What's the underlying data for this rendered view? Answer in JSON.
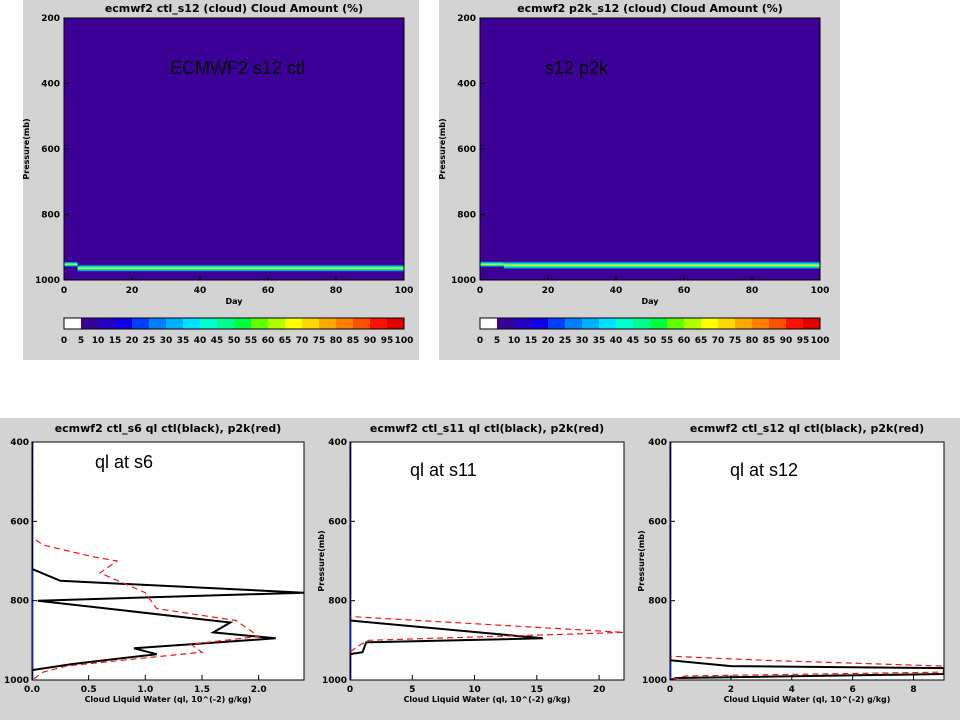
{
  "overlay_labels": {
    "top_left": "ECMWF2 s12 ctl",
    "top_right": "s12 p2k",
    "bottom_left": "ql at s6",
    "bottom_middle": "ql at s11",
    "bottom_right": "ql at s12"
  },
  "colorbar": {
    "labels": [
      "0",
      "5",
      "10",
      "15",
      "20",
      "25",
      "30",
      "35",
      "40",
      "45",
      "50",
      "55",
      "60",
      "65",
      "70",
      "75",
      "80",
      "85",
      "90",
      "95",
      "100"
    ],
    "colors": [
      "#ffffff",
      "#3c0096",
      "#2800c0",
      "#1000e8",
      "#0040ff",
      "#0080ff",
      "#00b0ff",
      "#00e0ff",
      "#00ffd0",
      "#00ff90",
      "#00ff40",
      "#60ff00",
      "#b0ff00",
      "#ffff00",
      "#ffd800",
      "#ffa800",
      "#ff8000",
      "#ff5000",
      "#ff1000",
      "#e00000"
    ]
  },
  "chart_data": [
    {
      "type": "heatmap",
      "title": "ecmwf2 ctl_s12  (cloud)  Cloud Amount (%)",
      "xlabel": "Day",
      "ylabel": "Pressure(mb)",
      "xlim": [
        0,
        100
      ],
      "ylim": [
        1000,
        200
      ],
      "xticks": [
        "0",
        "20",
        "40",
        "60",
        "80",
        "100"
      ],
      "yticks": [
        "200",
        "400",
        "600",
        "800",
        "1000"
      ],
      "background_value": 0,
      "cloud_band": {
        "pressure_center": 964,
        "pressure_width": 22,
        "start_day": 4
      },
      "initial_band": {
        "pressure_center": 952,
        "pressure_width": 16,
        "start_day": 0,
        "end_day": 4
      }
    },
    {
      "type": "heatmap",
      "title": "ecmwf2 p2k_s12  (cloud)  Cloud Amount (%)",
      "xlabel": "Day",
      "ylabel": "Pressure(mb)",
      "xlim": [
        0,
        100
      ],
      "ylim": [
        1000,
        200
      ],
      "xticks": [
        "0",
        "20",
        "40",
        "60",
        "80",
        "100"
      ],
      "yticks": [
        "200",
        "400",
        "600",
        "800",
        "1000"
      ],
      "background_value": 0,
      "cloud_band": {
        "pressure_center": 955,
        "pressure_width": 24,
        "start_day": 7
      },
      "initial_band": {
        "pressure_center": 952,
        "pressure_width": 18,
        "start_day": 0,
        "end_day": 7
      }
    },
    {
      "type": "line",
      "title": "ecmwf2 ctl_s6 ql ctl(black), p2k(red)",
      "xlabel": "Cloud Liquid Water (ql, 10^(-2) g/kg)",
      "ylabel": "Pressure(mb)",
      "xlim": [
        0,
        2.4
      ],
      "ylim": [
        1000,
        400
      ],
      "xticks": [
        {
          "v": 0,
          "t": "0.0"
        },
        {
          "v": 0.5,
          "t": "0.5"
        },
        {
          "v": 1.0,
          "t": "1.0"
        },
        {
          "v": 1.5,
          "t": "1.5"
        },
        {
          "v": 2.0,
          "t": "2.0"
        }
      ],
      "yticks": [
        {
          "v": 400,
          "t": "400"
        },
        {
          "v": 600,
          "t": "600"
        },
        {
          "v": 800,
          "t": "800"
        },
        {
          "v": 1000,
          "t": "1000"
        }
      ],
      "series": [
        {
          "name": "ctl",
          "color": "#000000",
          "style": "solid",
          "x": [
            0,
            0,
            0.25,
            2.4,
            0.05,
            1.75,
            1.6,
            2.15,
            0.9,
            1.1,
            0.35,
            0,
            0
          ],
          "y": [
            400,
            720,
            750,
            780,
            800,
            855,
            880,
            895,
            920,
            935,
            960,
            975,
            1000
          ]
        },
        {
          "name": "p2k",
          "color": "#e41a1c",
          "style": "dashed",
          "x": [
            0,
            0,
            0.1,
            0.55,
            0.75,
            0.6,
            1.0,
            1.1,
            1.8,
            2.0,
            1.4,
            1.5,
            0.8,
            0.3,
            0.1,
            0
          ],
          "y": [
            400,
            640,
            660,
            690,
            700,
            730,
            780,
            820,
            850,
            890,
            910,
            930,
            950,
            965,
            980,
            1000
          ]
        }
      ]
    },
    {
      "type": "line",
      "title": "ecmwf2 ctl_s11 ql ctl(black), p2k(red)",
      "xlabel": "Cloud Liquid Water (ql, 10^(-2) g/kg)",
      "ylabel": "Pressure(mb)",
      "xlim": [
        0,
        22
      ],
      "ylim": [
        1000,
        400
      ],
      "xticks": [
        {
          "v": 0,
          "t": "0"
        },
        {
          "v": 5,
          "t": "5"
        },
        {
          "v": 10,
          "t": "10"
        },
        {
          "v": 15,
          "t": "15"
        },
        {
          "v": 20,
          "t": "20"
        }
      ],
      "yticks": [
        {
          "v": 400,
          "t": "400"
        },
        {
          "v": 600,
          "t": "600"
        },
        {
          "v": 800,
          "t": "800"
        },
        {
          "v": 1000,
          "t": "1000"
        }
      ],
      "series": [
        {
          "name": "ctl",
          "color": "#000000",
          "style": "solid",
          "x": [
            0,
            0,
            15.5,
            1.3,
            1.0,
            0,
            0
          ],
          "y": [
            400,
            850,
            895,
            905,
            930,
            935,
            1000
          ]
        },
        {
          "name": "p2k",
          "color": "#e41a1c",
          "style": "dashed",
          "x": [
            0,
            0,
            22,
            1.5,
            0.6,
            0,
            0
          ],
          "y": [
            400,
            840,
            880,
            900,
            915,
            930,
            1000
          ]
        }
      ]
    },
    {
      "type": "line",
      "title": "ecmwf2 ctl_s12 ql ctl(black), p2k(red)",
      "xlabel": "Cloud Liquid Water (ql, 10^(-2) g/kg)",
      "ylabel": "Pressure(mb)",
      "xlim": [
        0,
        9
      ],
      "ylim": [
        1000,
        400
      ],
      "xticks": [
        {
          "v": 0,
          "t": "0"
        },
        {
          "v": 2,
          "t": "2"
        },
        {
          "v": 4,
          "t": "4"
        },
        {
          "v": 6,
          "t": "6"
        },
        {
          "v": 8,
          "t": "8"
        }
      ],
      "yticks": [
        {
          "v": 400,
          "t": "400"
        },
        {
          "v": 600,
          "t": "600"
        },
        {
          "v": 800,
          "t": "800"
        },
        {
          "v": 1000,
          "t": "1000"
        }
      ],
      "series": [
        {
          "name": "ctl",
          "color": "#000000",
          "style": "solid",
          "x": [
            0,
            0,
            2.0,
            9.0,
            9.0,
            0.2,
            0
          ],
          "y": [
            400,
            950,
            965,
            970,
            985,
            995,
            1000
          ]
        },
        {
          "name": "p2k",
          "color": "#e41a1c",
          "style": "dashed",
          "x": [
            0,
            0,
            3.0,
            9.0,
            9.0,
            0.5,
            0
          ],
          "y": [
            400,
            940,
            950,
            965,
            980,
            990,
            1000
          ]
        }
      ]
    }
  ]
}
